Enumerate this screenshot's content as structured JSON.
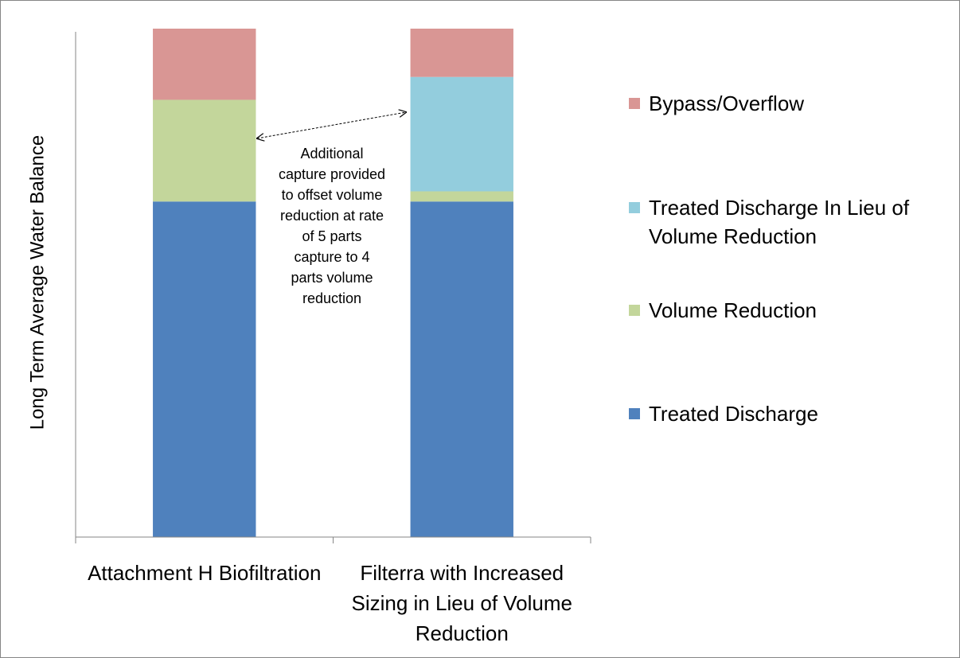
{
  "chart_data": {
    "type": "stacked-bar",
    "y_label": "Long Term Average Water Balance",
    "categories": [
      "Attachment H Biofiltration",
      "Filterra with Increased Sizing in Lieu of Volume Reduction"
    ],
    "series": [
      {
        "name": "Treated Discharge",
        "color": "#4f81bd",
        "values": [
          66,
          66
        ]
      },
      {
        "name": "Volume Reduction",
        "color": "#c3d69b",
        "values": [
          20,
          2
        ]
      },
      {
        "name": "Treated Discharge In Lieu of Volume Reduction",
        "color": "#93cddd",
        "values": [
          0,
          22.5
        ]
      },
      {
        "name": "Bypass/Overflow",
        "color": "#d99694",
        "values": [
          14,
          9.5
        ]
      }
    ],
    "annotation": "Additional capture provided to offset volume reduction at rate of 5 parts capture to  4 parts volume reduction",
    "ylim": [
      0,
      100
    ],
    "legend": "right"
  }
}
